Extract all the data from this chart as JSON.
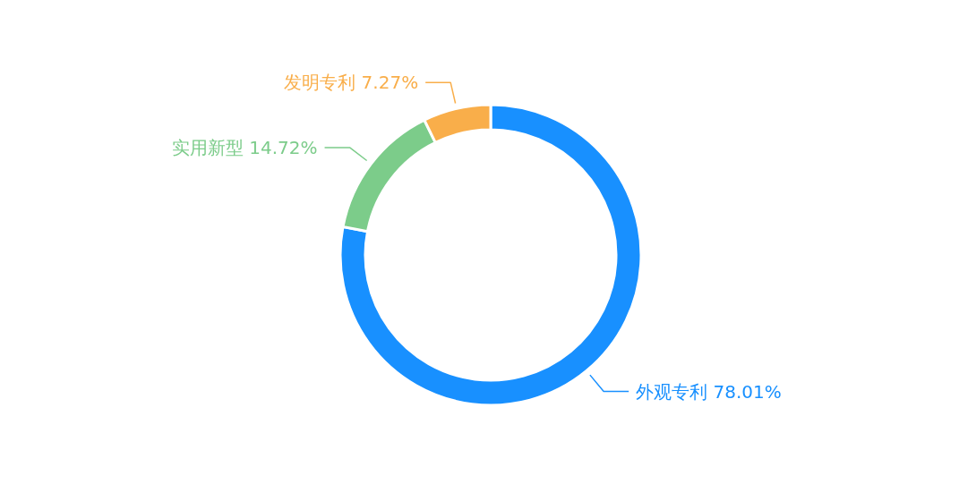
{
  "chart_data": {
    "type": "donut",
    "categories": [
      "外观专利",
      "实用新型",
      "发明专利"
    ],
    "values": [
      78.01,
      14.72,
      7.27
    ],
    "value_labels": [
      "78.01%",
      "14.72%",
      "7.27%"
    ],
    "colors": [
      "#1890ff",
      "#7ccc8a",
      "#f9ae4a"
    ],
    "legend": false
  }
}
